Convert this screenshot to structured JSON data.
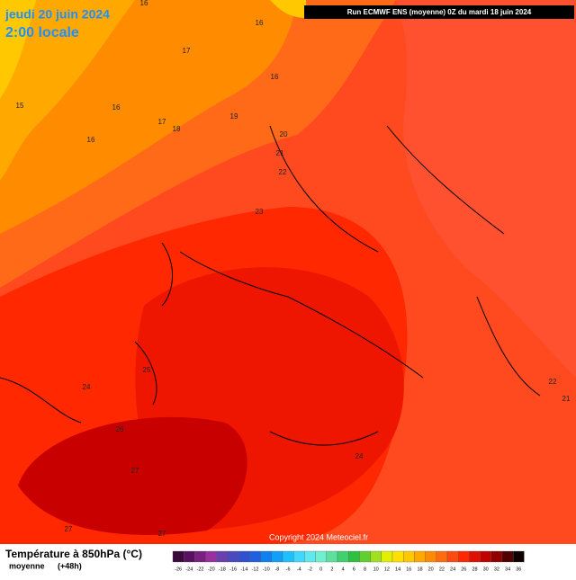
{
  "header": {
    "date": "jeudi 20 juin 2024",
    "time": "2:00 locale",
    "run": "Run ECMWF ENS (moyenne) 0Z du mardi 18 juin 2024"
  },
  "map": {
    "contour_labels": [
      16,
      16,
      17,
      16,
      15,
      16,
      17,
      18,
      19,
      16,
      20,
      21,
      22,
      23,
      25,
      24,
      26,
      27,
      27,
      27,
      24,
      22,
      21
    ],
    "copyright": "Copyright 2024 Meteociel.fr"
  },
  "legend": {
    "title": "Température à 850hPa (°C)",
    "subtitle": "moyenne",
    "lead": "(+48h)",
    "ticks": [
      -26,
      -24,
      -22,
      -20,
      -18,
      -16,
      -14,
      -12,
      -10,
      -8,
      -6,
      -4,
      -2,
      0,
      2,
      4,
      6,
      8,
      10,
      12,
      14,
      16,
      18,
      20,
      22,
      24,
      26,
      28,
      30,
      32,
      34,
      36
    ],
    "colors": [
      "#3a0a3a",
      "#5a1060",
      "#7a2080",
      "#9a30a0",
      "#6a40b0",
      "#4a4ac0",
      "#3050d0",
      "#2060e0",
      "#1080f0",
      "#10a0f8",
      "#20c0ff",
      "#40d8ff",
      "#60e8f0",
      "#70f0d0",
      "#60e0a0",
      "#40d070",
      "#30c040",
      "#60d030",
      "#a0e020",
      "#e0f000",
      "#ffe000",
      "#ffc800",
      "#ffa800",
      "#ff8c00",
      "#ff6c10",
      "#ff4a10",
      "#ff2800",
      "#e01000",
      "#c00000",
      "#900000",
      "#500000",
      "#100000"
    ]
  }
}
